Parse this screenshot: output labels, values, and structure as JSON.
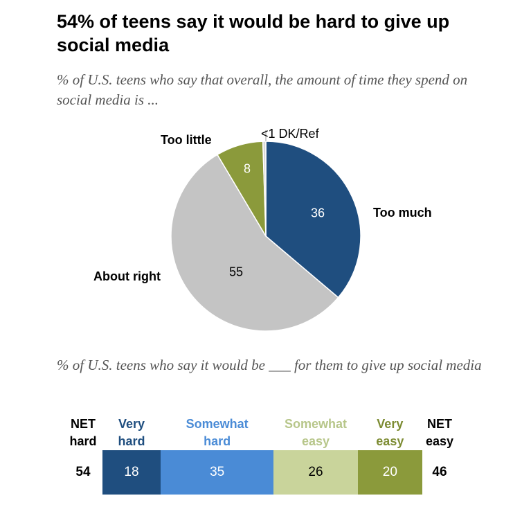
{
  "header": {
    "title": "54% of teens say it would be hard to give up social media",
    "subtitle_pie": "% of U.S. teens who say that overall, the amount of time they spend on social media is ...",
    "subtitle_bar": "% of U.S. teens who say it would be ___ for them to give up social media"
  },
  "chart_data": [
    {
      "type": "pie",
      "title": "% of U.S. teens who say that overall, the amount of time they spend on social media is ...",
      "slices": [
        {
          "label": "Too much",
          "value": 36,
          "display": "36",
          "color": "#1f4e7f"
        },
        {
          "label": "About right",
          "value": 55,
          "display": "55",
          "color": "#c4c4c4"
        },
        {
          "label": "Too little",
          "value": 8,
          "display": "8",
          "color": "#8b9a3b"
        },
        {
          "label": "DK/Ref",
          "value": 0.5,
          "display": "<1",
          "color": "#d8d8d8"
        }
      ]
    },
    {
      "type": "bar",
      "orientation": "horizontal-stacked",
      "title": "% of U.S. teens who say it would be ___ for them to give up social media",
      "categories": [
        "Very hard",
        "Somewhat hard",
        "Somewhat easy",
        "Very easy"
      ],
      "series": [
        {
          "name": "Very hard",
          "header": "Very\nhard",
          "value": 18,
          "color": "#1f4e7f",
          "header_color": "#1f4e7f",
          "text_color": "#ffffff"
        },
        {
          "name": "Somewhat hard",
          "header": "Somewhat\nhard",
          "value": 35,
          "color": "#4a8bd6",
          "header_color": "#4a8bd6",
          "text_color": "#ffffff"
        },
        {
          "name": "Somewhat easy",
          "header": "Somewhat\neasy",
          "value": 26,
          "color": "#c9d49b",
          "header_color": "#b7c68a",
          "text_color": "#000000"
        },
        {
          "name": "Very easy",
          "header": "Very\neasy",
          "value": 20,
          "color": "#8b9a3b",
          "header_color": "#7d8c33",
          "text_color": "#ffffff"
        }
      ],
      "net_hard": {
        "label": "NET\nhard",
        "value": "54"
      },
      "net_easy": {
        "label": "NET\neasy",
        "value": "46"
      }
    }
  ]
}
